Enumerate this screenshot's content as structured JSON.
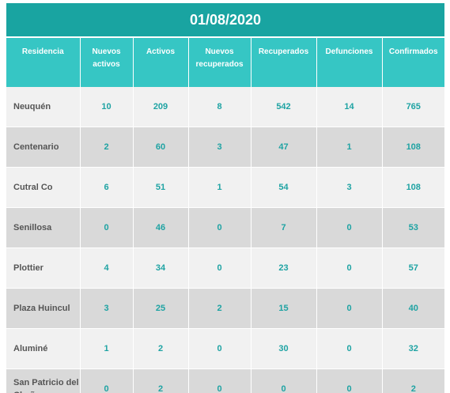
{
  "title": "01/08/2020",
  "headers": {
    "residencia": "Residencia",
    "nuevos_activos": "Nuevos activos",
    "activos": "Activos",
    "nuevos_recuperados": "Nuevos recuperados",
    "recuperados": "Recuperados",
    "defunciones": "Defunciones",
    "confirmados": "Confirmados"
  },
  "rows": [
    {
      "residencia": "Neuquén",
      "nuevos_activos": "10",
      "activos": "209",
      "nuevos_recuperados": "8",
      "recuperados": "542",
      "defunciones": "14",
      "confirmados": "765"
    },
    {
      "residencia": "Centenario",
      "nuevos_activos": "2",
      "activos": "60",
      "nuevos_recuperados": "3",
      "recuperados": "47",
      "defunciones": "1",
      "confirmados": "108"
    },
    {
      "residencia": "Cutral Co",
      "nuevos_activos": "6",
      "activos": "51",
      "nuevos_recuperados": "1",
      "recuperados": "54",
      "defunciones": "3",
      "confirmados": "108"
    },
    {
      "residencia": "Senillosa",
      "nuevos_activos": "0",
      "activos": "46",
      "nuevos_recuperados": "0",
      "recuperados": "7",
      "defunciones": "0",
      "confirmados": "53"
    },
    {
      "residencia": "Plottier",
      "nuevos_activos": "4",
      "activos": "34",
      "nuevos_recuperados": "0",
      "recuperados": "23",
      "defunciones": "0",
      "confirmados": "57"
    },
    {
      "residencia": "Plaza Huincul",
      "nuevos_activos": "3",
      "activos": "25",
      "nuevos_recuperados": "2",
      "recuperados": "15",
      "defunciones": "0",
      "confirmados": "40"
    },
    {
      "residencia": "Aluminé",
      "nuevos_activos": "1",
      "activos": "2",
      "nuevos_recuperados": "0",
      "recuperados": "30",
      "defunciones": "0",
      "confirmados": "32"
    },
    {
      "residencia": "San Patricio del Chañar",
      "nuevos_activos": "0",
      "activos": "2",
      "nuevos_recuperados": "0",
      "recuperados": "0",
      "defunciones": "0",
      "confirmados": "2"
    }
  ],
  "colors": {
    "title_bg": "#19a4a1",
    "header_bg": "#36c6c4",
    "row_light": "#f1f1f1",
    "row_dark": "#d9d9d9",
    "number_text": "#1ea3a3",
    "name_text": "#555555"
  }
}
